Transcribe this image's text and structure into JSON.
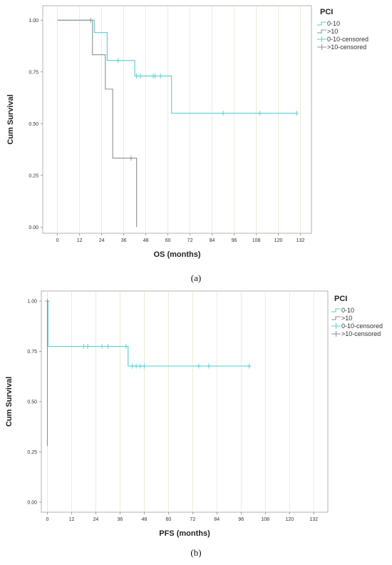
{
  "chart_data": [
    {
      "type": "line",
      "panel_label": "(a)",
      "xlabel": "OS (months)",
      "ylabel": "Cum Survival",
      "xlim": [
        -8,
        138
      ],
      "ylim": [
        -0.03,
        1.07
      ],
      "xticks": [
        0,
        12,
        24,
        36,
        48,
        60,
        72,
        84,
        96,
        108,
        120,
        132
      ],
      "yticks": [
        0.0,
        0.25,
        0.5,
        0.75,
        1.0
      ],
      "ytick_labels": [
        "0.00",
        "0.25",
        "0.50",
        "0.75",
        "1.00"
      ],
      "grid": true,
      "legend_title": "PCI",
      "legend_position": "top-right",
      "legend": [
        "0-10",
        ">10",
        "0-10-censored",
        ">10-censored"
      ],
      "series": [
        {
          "name": "0-10",
          "color": "#4fd0d2",
          "steps": [
            [
              0,
              1.0
            ],
            [
              20,
              0.94
            ],
            [
              27,
              0.805
            ],
            [
              42,
              0.73
            ],
            [
              62,
              0.55
            ],
            [
              130,
              0.55
            ]
          ],
          "censored": [
            [
              33,
              0.805
            ],
            [
              43,
              0.73
            ],
            [
              45,
              0.73
            ],
            [
              52,
              0.73
            ],
            [
              53,
              0.73
            ],
            [
              56,
              0.73
            ],
            [
              90,
              0.55
            ],
            [
              110,
              0.55
            ],
            [
              130,
              0.55
            ]
          ]
        },
        {
          "name": ">10",
          "color": "#8f8f8f",
          "steps": [
            [
              0,
              1.0
            ],
            [
              19,
              0.833
            ],
            [
              26,
              0.667
            ],
            [
              30,
              0.333
            ],
            [
              43,
              0.333
            ],
            [
              43,
              0.0
            ]
          ],
          "censored": [
            [
              18,
              1.0
            ],
            [
              40,
              0.333
            ]
          ]
        }
      ]
    },
    {
      "type": "line",
      "panel_label": "(b)",
      "xlabel": "PFS (months)",
      "ylabel": "Cum Survival",
      "xlim": [
        -3,
        139
      ],
      "ylim": [
        -0.05,
        1.05
      ],
      "xticks": [
        0,
        12,
        24,
        36,
        48,
        60,
        72,
        84,
        96,
        108,
        120,
        132
      ],
      "yticks": [
        0.0,
        0.25,
        0.5,
        0.75,
        1.0
      ],
      "ytick_labels": [
        "0.00",
        "0.25",
        "0.50",
        "0.75",
        "1.00"
      ],
      "grid": true,
      "legend_title": "PCI",
      "legend_position": "top-right",
      "legend": [
        "0-10",
        ">10",
        "0-10-censored",
        ">10-censored"
      ],
      "series": [
        {
          "name": "0-10",
          "color": "#4fd0d2",
          "steps": [
            [
              0,
              1.0
            ],
            [
              0.3,
              0.775
            ],
            [
              40,
              0.677
            ],
            [
              100,
              0.677
            ]
          ],
          "censored": [
            [
              18,
              0.775
            ],
            [
              20,
              0.775
            ],
            [
              27,
              0.775
            ],
            [
              30,
              0.775
            ],
            [
              39,
              0.775
            ],
            [
              42,
              0.677
            ],
            [
              44,
              0.677
            ],
            [
              46,
              0.677
            ],
            [
              48,
              0.677
            ],
            [
              75,
              0.677
            ],
            [
              80,
              0.677
            ],
            [
              100,
              0.677
            ]
          ]
        },
        {
          "name": ">10",
          "color": "#8f8f8f",
          "steps": [
            [
              0,
              1.0
            ],
            [
              0,
              0.28
            ]
          ],
          "censored": [
            [
              0,
              1.0
            ]
          ]
        }
      ]
    }
  ]
}
